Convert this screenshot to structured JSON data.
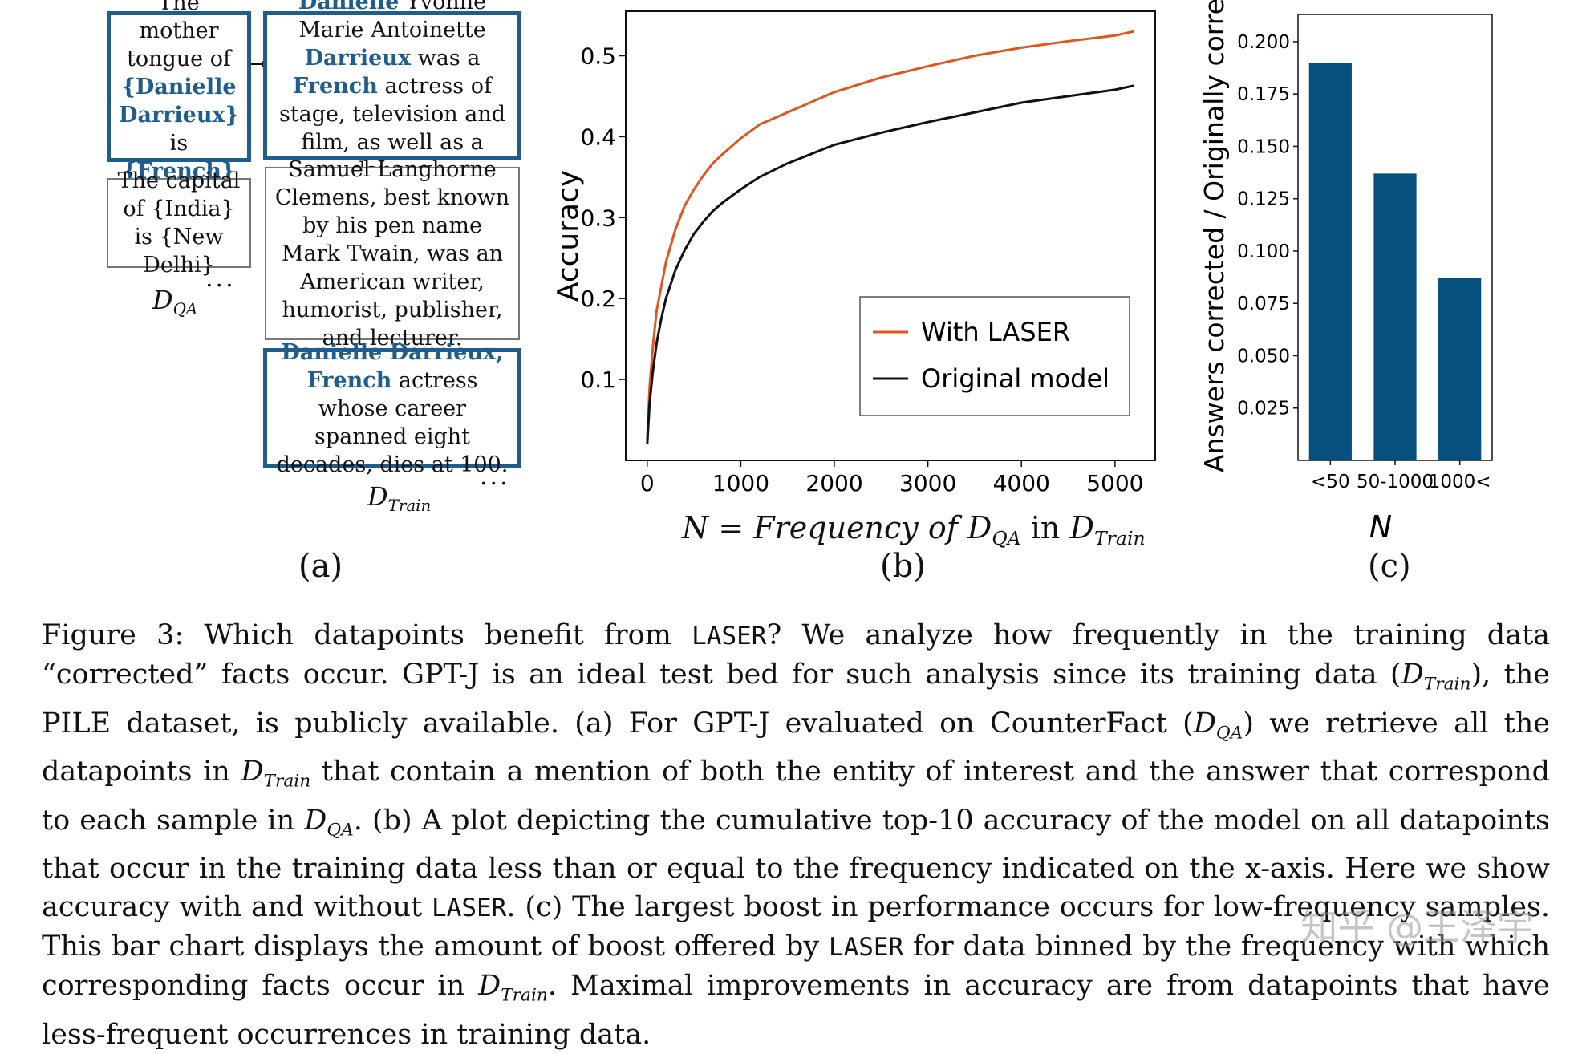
{
  "panel_a": {
    "qa_box1": {
      "text1": "The mother tongue of ",
      "entity": "{Danielle Darrieux}",
      "text2": " is ",
      "answer": "{French}"
    },
    "qa_box2": "The capital of {India} is {New Delhi}",
    "qa_dots": "...",
    "qa_label": "QA",
    "train_box1": {
      "ent1": "Danielle",
      "t1": " Yvonne Marie Antoinette ",
      "ent2": "Darrieux",
      "t2": " was a ",
      "ent3": "French",
      "t3": " actress of stage, television and film, as well as a dancer."
    },
    "train_box2": "Samuel Langhorne Clemens, best known by his pen name Mark Twain, was an American writer, humorist, publisher, and lecturer.",
    "train_box3": {
      "ent1": "Danielle Darrieux,",
      "ent2": "French",
      "t1": " actress whose career spanned eight decades, dies at 100."
    },
    "train_dots": "...",
    "train_label": "Train",
    "panel_label": "(a)"
  },
  "panel_b": {
    "xlabel_prefix": "N = Frequency of ",
    "xlabel_mid": " in ",
    "xlabel_sub1": "QA",
    "xlabel_sub2": "Train",
    "panel_label": "(b)"
  },
  "panel_c": {
    "panel_label": "(c)"
  },
  "chart_data": [
    {
      "type": "line",
      "ylabel": "Accuracy",
      "xlim": [
        -230,
        5430
      ],
      "ylim": [
        0.0,
        0.555
      ],
      "xticks": [
        0,
        1000,
        2000,
        3000,
        4000,
        5000
      ],
      "xtick_labels": [
        "0",
        "1000",
        "2000",
        "3000",
        "4000",
        "5000"
      ],
      "yticks": [
        0.1,
        0.2,
        0.3,
        0.4,
        0.5
      ],
      "ytick_labels": [
        "0.1",
        "0.2",
        "0.3",
        "0.4",
        "0.5"
      ],
      "legend_position": "lower-right",
      "series": [
        {
          "name": "With LASER",
          "color": "#e0561f",
          "x": [
            0,
            25,
            60,
            100,
            150,
            200,
            300,
            400,
            500,
            600,
            700,
            800,
            1000,
            1200,
            1500,
            2000,
            2500,
            3000,
            3500,
            4000,
            4500,
            5000,
            5200
          ],
          "y": [
            0.025,
            0.09,
            0.14,
            0.185,
            0.215,
            0.245,
            0.285,
            0.315,
            0.335,
            0.352,
            0.367,
            0.378,
            0.398,
            0.415,
            0.43,
            0.455,
            0.473,
            0.487,
            0.5,
            0.51,
            0.518,
            0.525,
            0.53
          ]
        },
        {
          "name": "Original model",
          "color": "#111111",
          "x": [
            0,
            25,
            60,
            100,
            150,
            200,
            300,
            400,
            500,
            600,
            700,
            800,
            1000,
            1200,
            1500,
            2000,
            2500,
            3000,
            3500,
            4000,
            4500,
            5000,
            5200
          ],
          "y": [
            0.02,
            0.07,
            0.11,
            0.145,
            0.175,
            0.2,
            0.235,
            0.26,
            0.28,
            0.295,
            0.308,
            0.318,
            0.335,
            0.35,
            0.367,
            0.39,
            0.405,
            0.418,
            0.43,
            0.442,
            0.45,
            0.458,
            0.463
          ]
        }
      ]
    },
    {
      "type": "bar",
      "ylabel": "Answers corrected / Originally correct",
      "xlabel": "N",
      "categories": [
        "<50",
        "50-1000",
        "1000<"
      ],
      "values": [
        0.19,
        0.137,
        0.087
      ],
      "color": "#05507e",
      "ylim": [
        0.0,
        0.213
      ],
      "yticks": [
        0.025,
        0.05,
        0.075,
        0.1,
        0.125,
        0.15,
        0.175,
        0.2
      ],
      "ytick_labels": [
        "0.025",
        "0.050",
        "0.075",
        "0.100",
        "0.125",
        "0.150",
        "0.175",
        "0.200"
      ]
    }
  ],
  "caption": {
    "p1": "Figure 3: Which datapoints benefit from ",
    "laser1": "LASER",
    "p2": "? We analyze how frequently in the training data “corrected” facts occur. GPT-J is an ideal test bed for such analysis since its training data (",
    "sub_train1": "Train",
    "p3": "), the PILE dataset, is publicly available. (a) For GPT-J evaluated on CounterFact (",
    "sub_qa1": "QA",
    "p4": ") we retrieve all the datapoints in ",
    "sub_train2": "Train",
    "p5": " that contain a mention of both the entity of interest and the answer that correspond to each sample in ",
    "sub_qa2": "QA",
    "p6": ". (b) A plot depicting the cumulative top-10 accuracy of the model on all datapoints that occur in the training data less than or equal to the frequency indicated on the x-axis. Here we show accuracy with and without ",
    "laser2": "LASER",
    "p7": ". (c) The largest boost in performance occurs for low-frequency samples. This bar chart displays the amount of boost offered by ",
    "laser3": "LASER",
    "p8": " for data binned by the frequency with which corresponding facts occur in ",
    "sub_train3": "Train",
    "p9": ". Maximal improvements in accuracy are from datapoints that have less-frequent occurrences in training data.",
    "d_symbol": "D"
  },
  "watermark": "知乎 @王泽宇"
}
